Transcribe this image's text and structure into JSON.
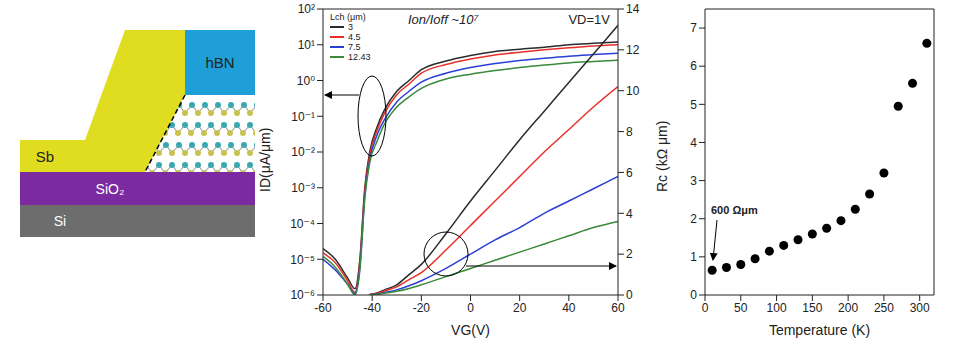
{
  "schematic": {
    "layers": {
      "top": "hBN",
      "contact": "Sb",
      "oxide": "SiO₂",
      "substrate": "Si"
    }
  },
  "chart_data": [
    {
      "type": "line",
      "x_label": "VG(V)",
      "y_label": "ID(μA/μm)",
      "annotations": [
        "Ion/Ioff ~10⁷",
        "VD=1V"
      ],
      "legend_title": "Lch (μm)",
      "legend": "top-left",
      "log": "y",
      "xlim": [
        -60,
        60
      ],
      "xticks": [
        -60,
        -40,
        -20,
        0,
        20,
        40,
        60
      ],
      "ylim": [
        1e-06,
        100
      ],
      "yticks": [
        {
          "value": 1e-06,
          "label": "10⁻⁶"
        },
        {
          "value": 1e-05,
          "label": "10⁻⁵"
        },
        {
          "value": 0.0001,
          "label": "10⁻⁴"
        },
        {
          "value": 0.001,
          "label": "10⁻³"
        },
        {
          "value": 0.01,
          "label": "10⁻²"
        },
        {
          "value": 0.1,
          "label": "10⁻¹"
        },
        {
          "value": 1,
          "label": "10⁰"
        },
        {
          "value": 10,
          "label": "10¹"
        },
        {
          "value": 100,
          "label": "10²"
        }
      ],
      "y2lim": [
        0,
        14
      ],
      "y2ticks": [
        0,
        2,
        4,
        6,
        8,
        10,
        12,
        14
      ],
      "x": [
        -60,
        -55,
        -50,
        -47,
        -45,
        -43,
        -41,
        -38,
        -35,
        -30,
        -25,
        -20,
        -10,
        0,
        10,
        20,
        30,
        40,
        50,
        60
      ],
      "series": [
        {
          "name": "3",
          "color": "#2b2b2b",
          "values": [
            2e-05,
            1e-05,
            3e-06,
            1.5e-06,
            1e-05,
            0.001,
            0.01,
            0.05,
            0.15,
            0.5,
            1,
            2,
            3.5,
            5,
            6.5,
            7.5,
            8.5,
            10,
            11,
            12
          ]
        },
        {
          "name": "4.5",
          "color": "#e8302a",
          "values": [
            1.5e-05,
            8e-06,
            2.5e-06,
            1.2e-06,
            8e-06,
            0.0008,
            0.008,
            0.04,
            0.12,
            0.4,
            0.8,
            1.6,
            2.8,
            4,
            5.2,
            6.2,
            7.2,
            8.2,
            9.2,
            10
          ]
        },
        {
          "name": "7.5",
          "color": "#2a3fd6",
          "values": [
            1e-05,
            5e-06,
            2e-06,
            1.1e-06,
            6e-06,
            0.0006,
            0.006,
            0.03,
            0.08,
            0.25,
            0.5,
            0.9,
            1.6,
            2.3,
            3,
            3.6,
            4.2,
            4.8,
            5.3,
            5.8
          ]
        },
        {
          "name": "12.43",
          "color": "#3a8a3a",
          "values": [
            1.2e-05,
            6e-06,
            2e-06,
            1e-06,
            5e-06,
            0.0005,
            0.005,
            0.02,
            0.06,
            0.18,
            0.35,
            0.6,
            1.1,
            1.5,
            1.9,
            2.3,
            2.7,
            3.1,
            3.4,
            3.7
          ]
        },
        {
          "name": "3",
          "color": "#2b2b2b",
          "axis": "y2",
          "values": [
            null,
            null,
            null,
            null,
            null,
            null,
            0.02,
            0.1,
            0.25,
            0.5,
            1,
            1.5,
            3,
            4.6,
            6.1,
            7.6,
            9,
            10.4,
            11.8,
            13.2
          ]
        },
        {
          "name": "4.5",
          "color": "#e8302a",
          "axis": "y2",
          "values": [
            null,
            null,
            null,
            null,
            null,
            null,
            0.02,
            0.08,
            0.2,
            0.4,
            0.75,
            1.1,
            2.2,
            3.4,
            4.6,
            5.8,
            7,
            8.1,
            9.2,
            10.2
          ]
        },
        {
          "name": "7.5",
          "color": "#2a3fd6",
          "axis": "y2",
          "values": [
            null,
            null,
            null,
            null,
            null,
            null,
            0.01,
            0.05,
            0.12,
            0.25,
            0.45,
            0.7,
            1.3,
            2,
            2.7,
            3.3,
            4,
            4.6,
            5.2,
            5.8
          ]
        },
        {
          "name": "12.43",
          "color": "#3a8a3a",
          "axis": "y2",
          "values": [
            null,
            null,
            null,
            null,
            null,
            null,
            0.01,
            0.04,
            0.09,
            0.18,
            0.32,
            0.5,
            0.9,
            1.3,
            1.7,
            2.1,
            2.5,
            2.9,
            3.3,
            3.6
          ]
        }
      ]
    },
    {
      "type": "scatter",
      "x_label": "Temperature (K)",
      "y_label": "Rc (kΩ μm)",
      "annotations": [
        "600 Ωμm"
      ],
      "marker": "circle",
      "color": "#000000",
      "xlim": [
        0,
        320
      ],
      "xticks": [
        0,
        50,
        100,
        150,
        200,
        250,
        300
      ],
      "ylim": [
        0,
        7.5
      ],
      "yticks": [
        0,
        1,
        2,
        3,
        4,
        5,
        6,
        7
      ],
      "x": [
        10,
        30,
        50,
        70,
        90,
        110,
        130,
        150,
        170,
        190,
        210,
        230,
        250,
        270,
        290,
        310
      ],
      "values": [
        0.65,
        0.72,
        0.8,
        0.95,
        1.15,
        1.3,
        1.45,
        1.6,
        1.75,
        1.95,
        2.25,
        2.65,
        3.2,
        4.95,
        5.55,
        6.6
      ]
    }
  ]
}
